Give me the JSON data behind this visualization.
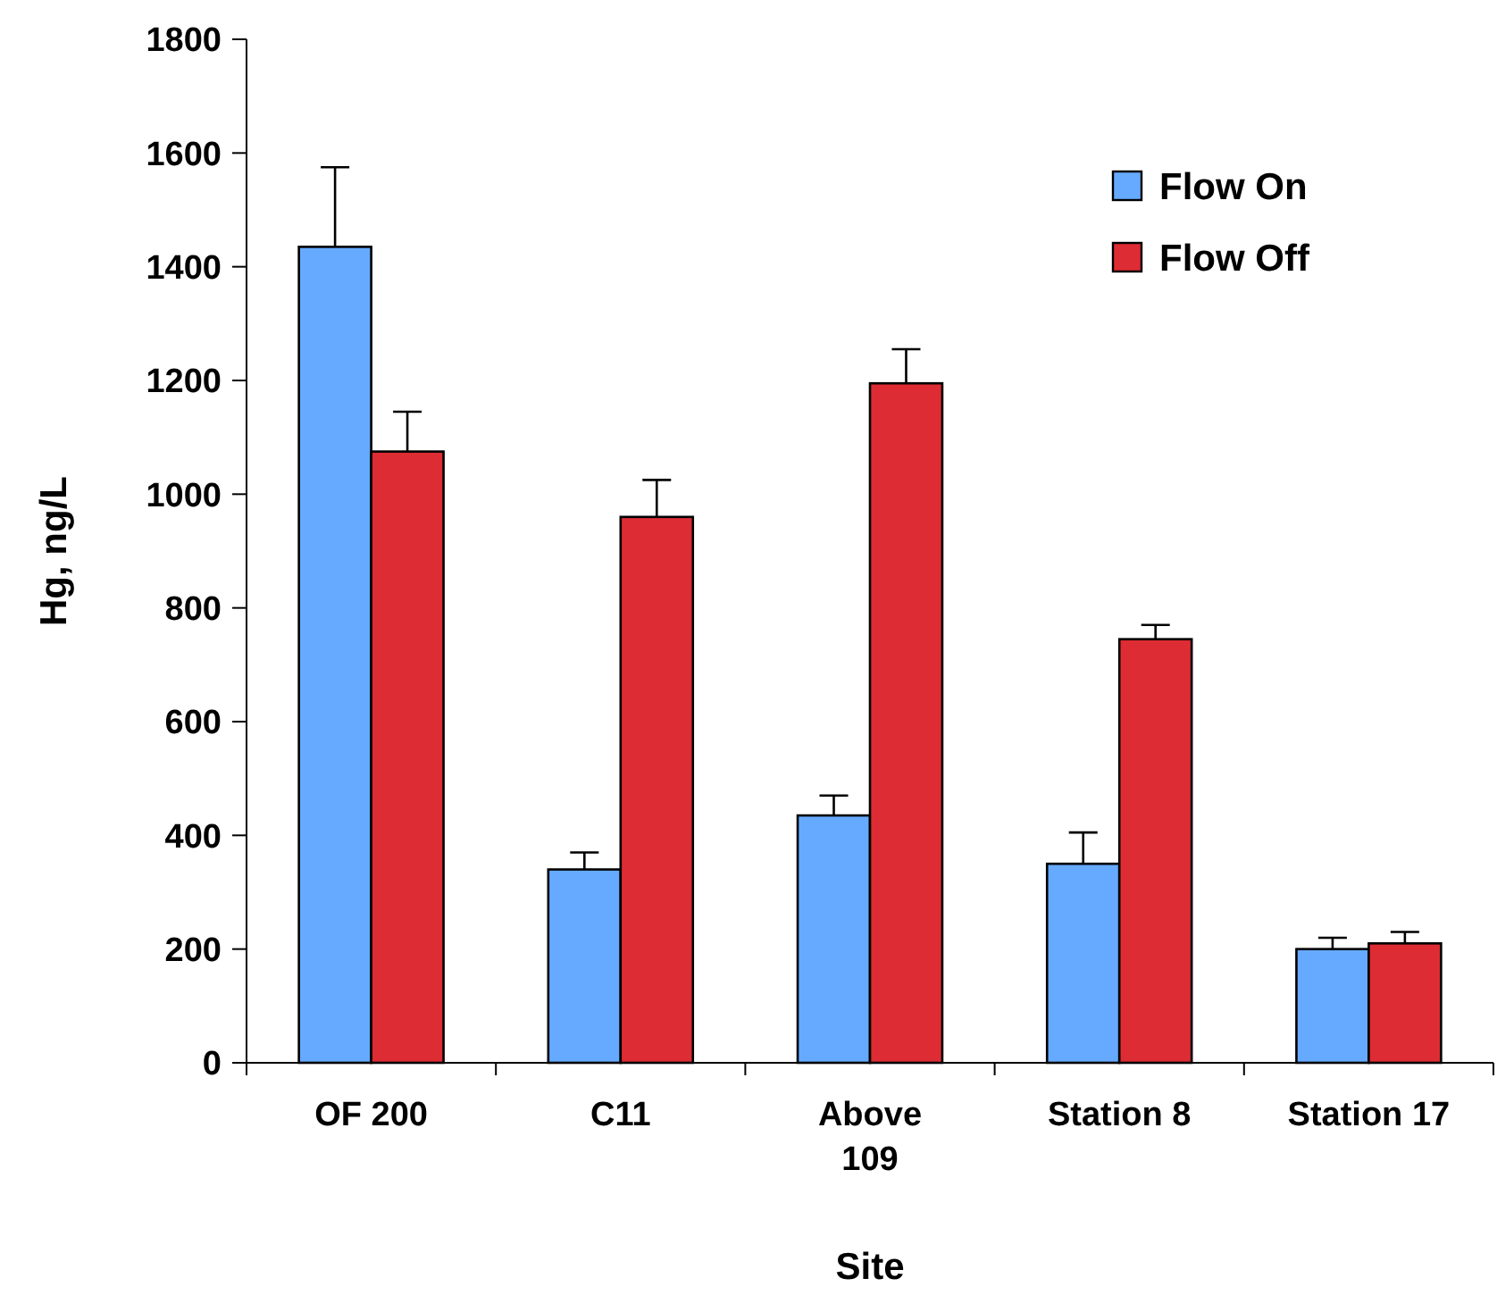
{
  "chart_data": {
    "type": "bar",
    "xlabel": "Site",
    "ylabel": "Hg, ng/L",
    "categories": [
      "OF 200",
      "C11",
      "Above\n109",
      "Station 8",
      "Station 17"
    ],
    "series": [
      {
        "name": "Flow On",
        "color": "#66aaff",
        "values": [
          1435,
          340,
          435,
          350,
          200
        ],
        "errors": [
          140,
          30,
          35,
          55,
          20
        ]
      },
      {
        "name": "Flow Off",
        "color": "#dd2c33",
        "values": [
          1075,
          960,
          1195,
          745,
          210
        ],
        "errors": [
          70,
          65,
          60,
          25,
          20
        ]
      }
    ],
    "ylim": [
      0,
      1800
    ],
    "yticks": [
      0,
      200,
      400,
      600,
      800,
      1000,
      1200,
      1400,
      1600,
      1800
    ],
    "grid": false,
    "legend": "top right"
  }
}
